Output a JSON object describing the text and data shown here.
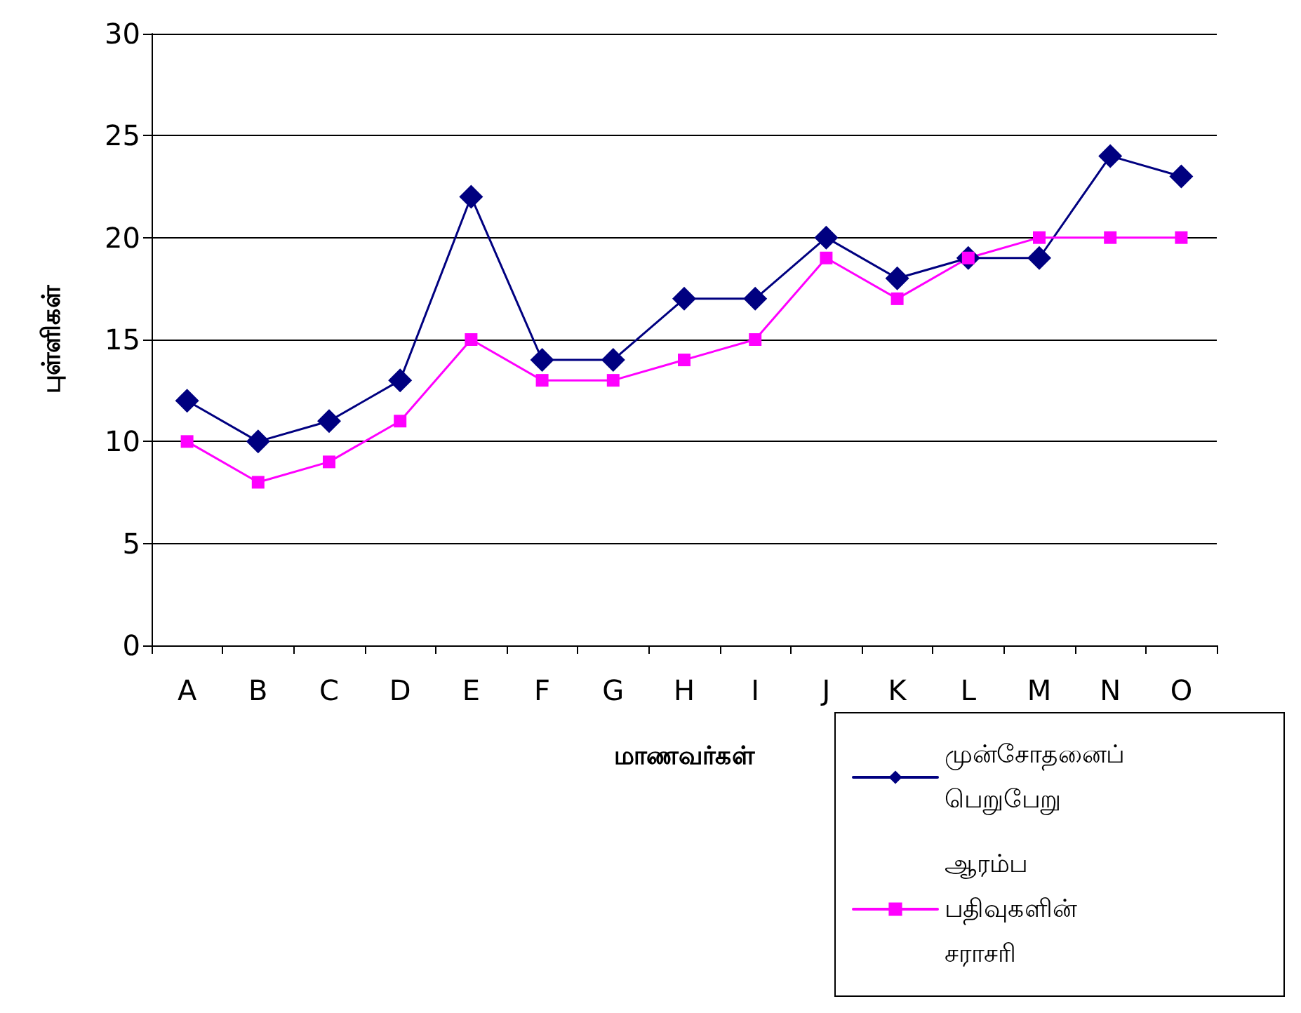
{
  "chart_data": {
    "type": "line",
    "xlabel": "மாணவர்கள்",
    "ylabel": "புள்ளிகள்",
    "categories": [
      "A",
      "B",
      "C",
      "D",
      "E",
      "F",
      "G",
      "H",
      "I",
      "J",
      "K",
      "L",
      "M",
      "N",
      "O"
    ],
    "series": [
      {
        "name": "முன்சோதனைப் பெறுபேறு",
        "color": "#000080",
        "marker": "diamond",
        "values": [
          12,
          10,
          11,
          13,
          22,
          14,
          14,
          17,
          17,
          20,
          18,
          19,
          19,
          24,
          23
        ]
      },
      {
        "name": "ஆரம்ப பதிவுகளின் சராசரி",
        "color": "#ff00ff",
        "marker": "square",
        "values": [
          10,
          8,
          9,
          11,
          15,
          13,
          13,
          14,
          15,
          19,
          17,
          19,
          20,
          20,
          20
        ]
      }
    ],
    "ylim": [
      0,
      30
    ],
    "yticks": [
      0,
      5,
      10,
      15,
      20,
      25,
      30
    ],
    "grid": "y",
    "legend": "bottom right"
  }
}
